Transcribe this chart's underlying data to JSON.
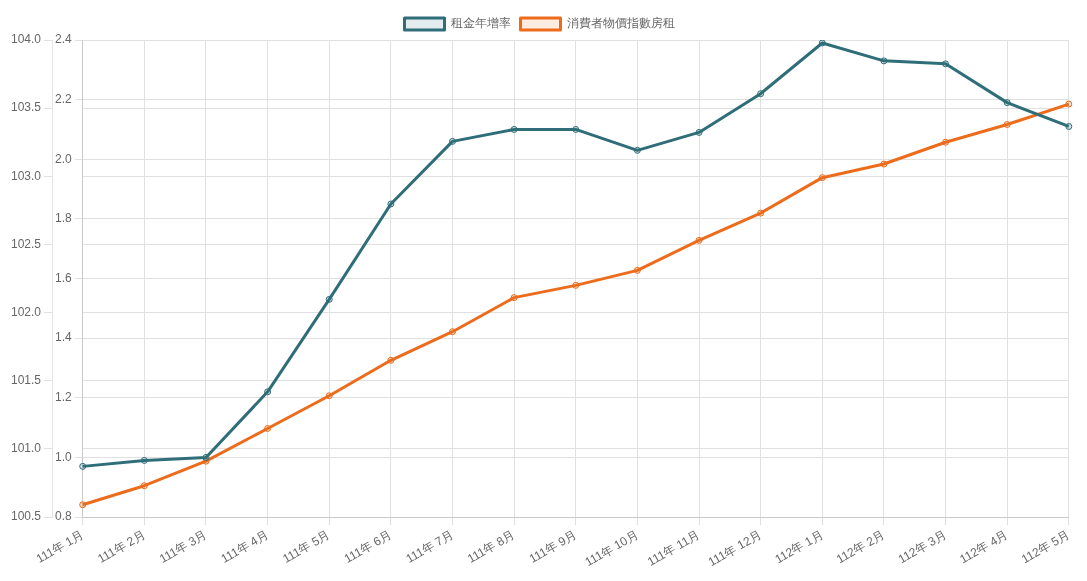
{
  "chart_data": {
    "type": "line",
    "categories": [
      "111年 1月",
      "111年 2月",
      "111年 3月",
      "111年 4月",
      "111年 5月",
      "111年 6月",
      "111年 7月",
      "111年 8月",
      "111年 9月",
      "111年 10月",
      "111年 11月",
      "111年 12月",
      "112年 1月",
      "112年 2月",
      "112年 3月",
      "112年 4月",
      "112年 5月"
    ],
    "series": [
      {
        "name": "租金年增率",
        "color": "#2f6e78",
        "values": [
          0.97,
          0.99,
          1.0,
          1.22,
          1.53,
          1.85,
          2.06,
          2.1,
          2.1,
          2.03,
          2.09,
          2.22,
          2.39,
          2.33,
          2.32,
          2.19,
          2.11
        ]
      },
      {
        "name": "消費者物價指數房租",
        "color": "#ec6c1c",
        "axis": "y2",
        "values": [
          100.59,
          100.73,
          100.91,
          101.15,
          101.39,
          101.65,
          101.86,
          102.11,
          102.2,
          102.31,
          102.53,
          102.73,
          102.99,
          103.09,
          103.25,
          103.38,
          103.53
        ]
      }
    ],
    "ylim": [
      0.8,
      2.4
    ],
    "yticks": [
      0.8,
      {
        "value": 1,
        "label": "1.0"
      },
      1.2,
      1.4,
      1.6,
      1.8,
      {
        "value": 2,
        "label": "2.0"
      },
      2.2,
      2.4
    ],
    "y2lim": [
      100.5,
      104
    ],
    "y2ticks": [
      100.5,
      {
        "value": 101,
        "label": "101.0"
      },
      101.5,
      {
        "value": 102,
        "label": "102.0"
      },
      102.5,
      {
        "value": 103,
        "label": "103.0"
      },
      103.5,
      {
        "value": 104,
        "label": "104.0"
      }
    ],
    "grid": true,
    "legend": "top",
    "marker": "circle",
    "line_style": "solid"
  }
}
